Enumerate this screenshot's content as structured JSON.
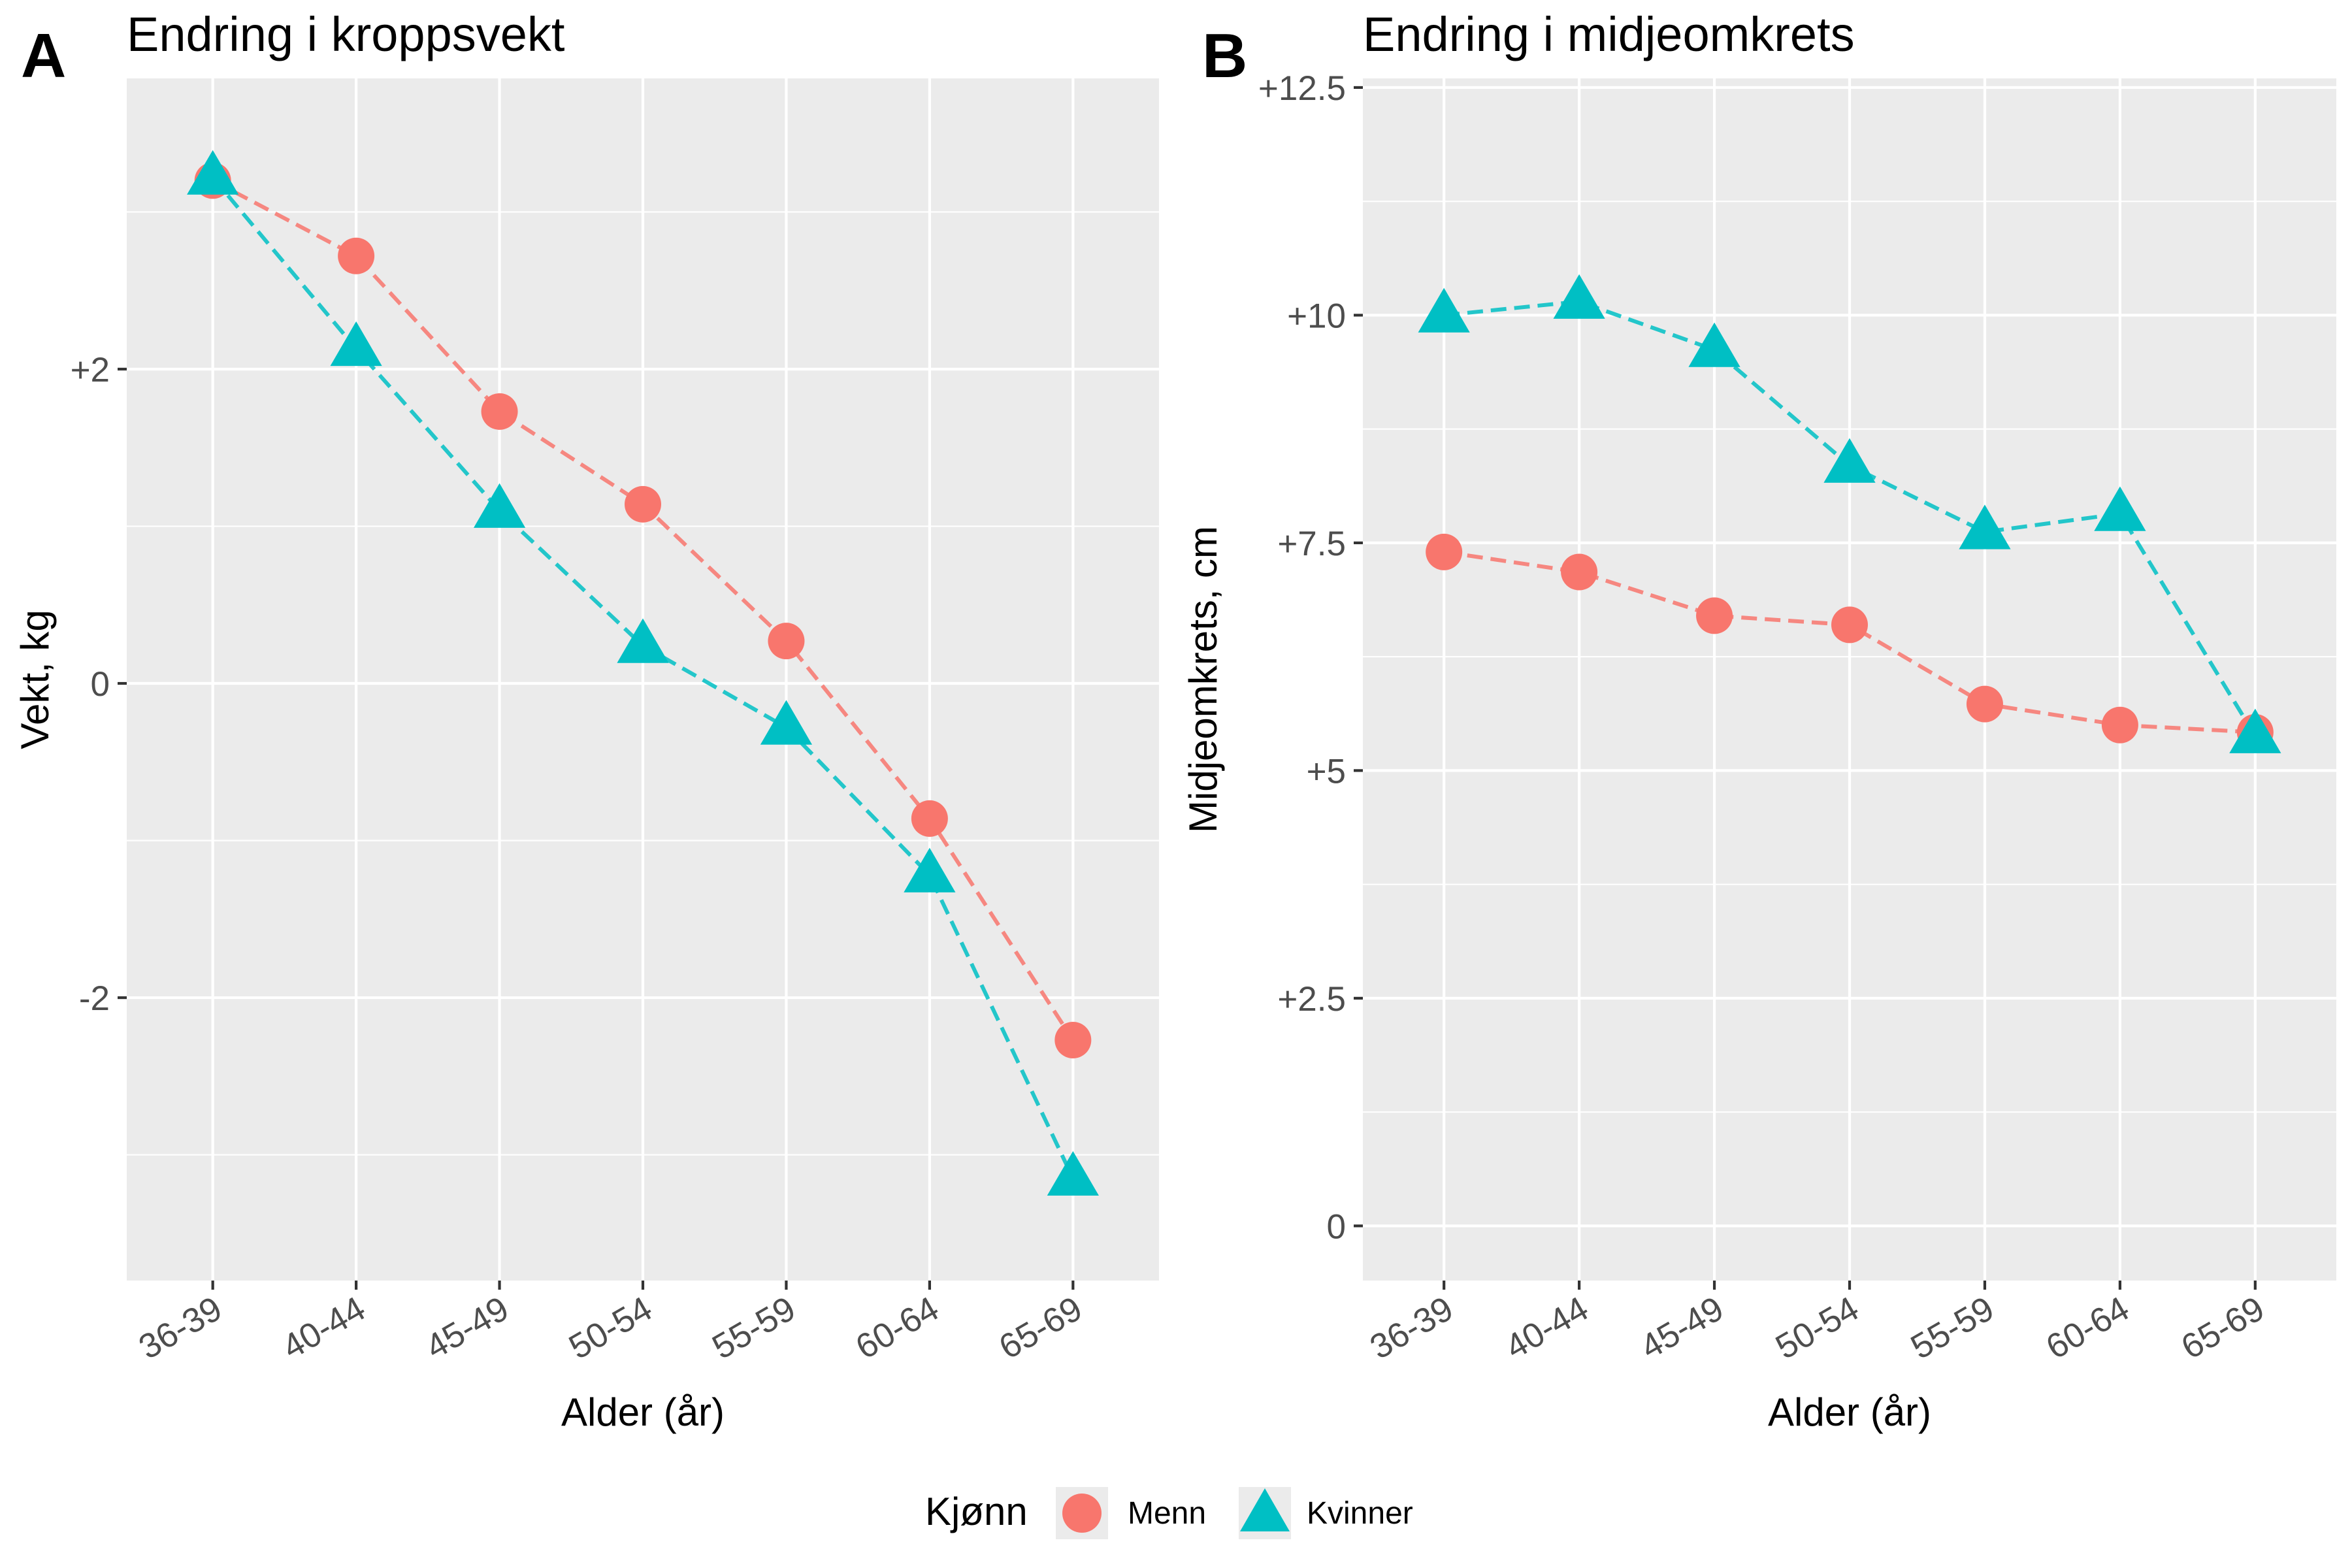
{
  "legend": {
    "title": "Kjønn",
    "entries": [
      {
        "label": "Menn",
        "shape": "circle",
        "color": "#F8766D"
      },
      {
        "label": "Kvinner",
        "shape": "triangle",
        "color": "#00BFC4"
      }
    ]
  },
  "chart_data": [
    {
      "type": "line",
      "tag": "A",
      "title": "Endring i kroppsvekt",
      "xlabel": "Alder (år)",
      "ylabel": "Vekt, kg",
      "categories": [
        "36-39",
        "40-44",
        "45-49",
        "50-54",
        "55-59",
        "60-64",
        "65-69"
      ],
      "ylim": [
        -3.8,
        3.85
      ],
      "yticks": [
        {
          "value": -2,
          "label": "-2"
        },
        {
          "value": 0,
          "label": "0"
        },
        {
          "value": 2,
          "label": "+2"
        }
      ],
      "yminor": [
        -3,
        -1,
        1,
        3
      ],
      "grid": true,
      "linestyle": "dashed",
      "series": [
        {
          "name": "Menn",
          "shape": "circle",
          "color": "#F8766D",
          "values": [
            3.2,
            2.72,
            1.73,
            1.14,
            0.27,
            -0.86,
            -2.27
          ]
        },
        {
          "name": "Kvinner",
          "shape": "triangle",
          "color": "#00BFC4",
          "values": [
            3.22,
            2.13,
            1.1,
            0.24,
            -0.28,
            -1.22,
            -3.15
          ]
        }
      ]
    },
    {
      "type": "line",
      "tag": "B",
      "title": "Endring i midjeomkrets",
      "xlabel": "Alder (år)",
      "ylabel": "Midjeomkrets, cm",
      "categories": [
        "36-39",
        "40-44",
        "45-49",
        "50-54",
        "55-59",
        "60-64",
        "65-69"
      ],
      "ylim": [
        -0.6,
        12.6
      ],
      "yticks": [
        {
          "value": 0,
          "label": "0"
        },
        {
          "value": 2.5,
          "label": "+2.5"
        },
        {
          "value": 5,
          "label": "+5"
        },
        {
          "value": 7.5,
          "label": "+7.5"
        },
        {
          "value": 10,
          "label": "+10"
        },
        {
          "value": 12.5,
          "label": "+12.5"
        }
      ],
      "yminor": [
        1.25,
        3.75,
        6.25,
        8.75,
        11.25
      ],
      "grid": true,
      "linestyle": "dashed",
      "series": [
        {
          "name": "Menn",
          "shape": "circle",
          "color": "#F8766D",
          "values": [
            7.4,
            7.18,
            6.7,
            6.6,
            5.73,
            5.5,
            5.42
          ]
        },
        {
          "name": "Kvinner",
          "shape": "triangle",
          "color": "#00BFC4",
          "values": [
            10.0,
            10.15,
            9.62,
            8.35,
            7.62,
            7.82,
            5.38
          ]
        }
      ]
    }
  ]
}
